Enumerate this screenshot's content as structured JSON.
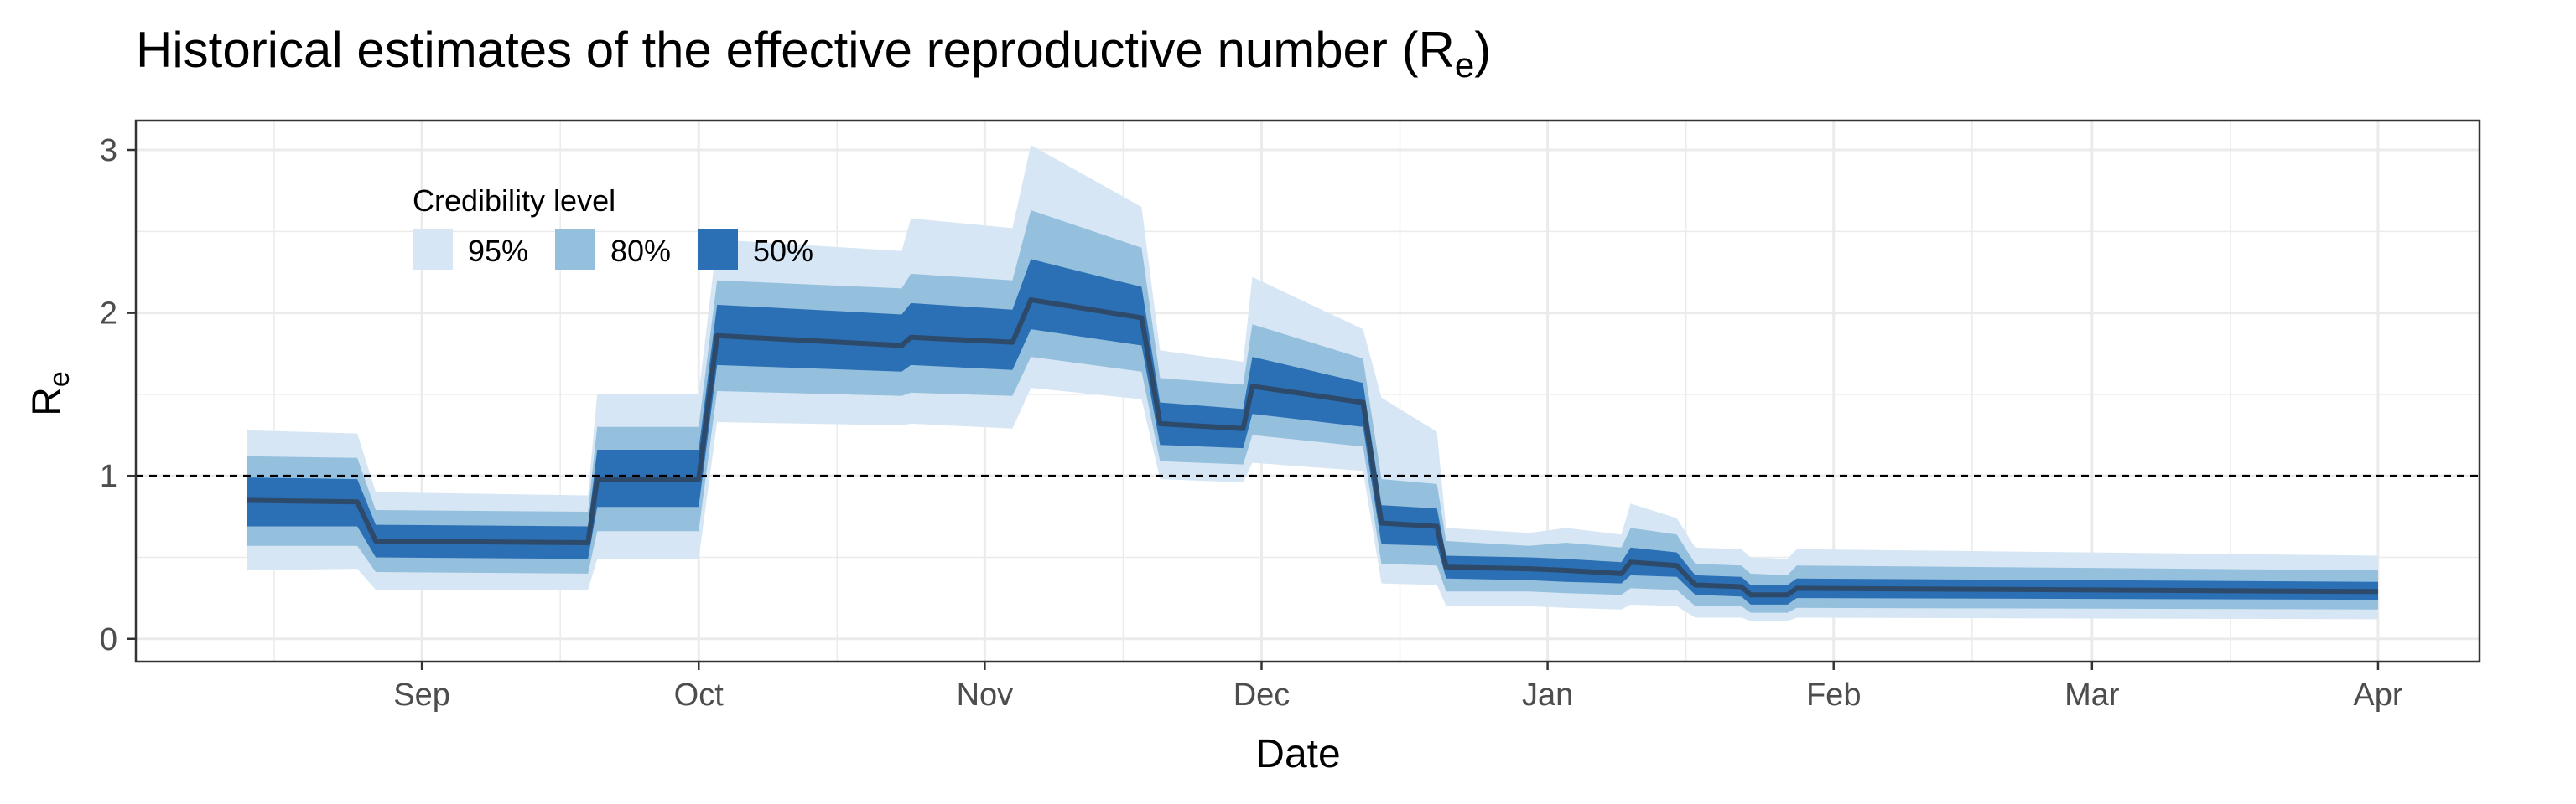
{
  "chart_data": {
    "type": "area",
    "title": "Historical estimates of the effective reproductive number (R",
    "title_subscript": "e",
    "title_suffix": ")",
    "xlabel": "Date",
    "ylabel": "R",
    "ylabel_subscript": "e",
    "ylim": [
      -0.14,
      3.18
    ],
    "y_ticks": [
      0,
      1,
      2,
      3
    ],
    "x_domain": [
      "2020-08-01",
      "2021-04-12"
    ],
    "x_ticks": [
      {
        "date": "2020-09-01",
        "label": "Sep"
      },
      {
        "date": "2020-10-01",
        "label": "Oct"
      },
      {
        "date": "2020-11-01",
        "label": "Nov"
      },
      {
        "date": "2020-12-01",
        "label": "Dec"
      },
      {
        "date": "2021-01-01",
        "label": "Jan"
      },
      {
        "date": "2021-02-01",
        "label": "Feb"
      },
      {
        "date": "2021-03-01",
        "label": "Mar"
      },
      {
        "date": "2021-04-01",
        "label": "Apr"
      }
    ],
    "reference_line": {
      "y": 1,
      "style": "dashed"
    },
    "grid": true,
    "legend": {
      "title": "Credibility level",
      "position": "top-left-inside",
      "entries": [
        {
          "label": "95%",
          "color": "#d6e6f4"
        },
        {
          "label": "80%",
          "color": "#94c0dd"
        },
        {
          "label": "50%",
          "color": "#2b6fb5"
        }
      ]
    },
    "colors": {
      "median": "#2e4a6b",
      "ci95": "#d6e6f4",
      "ci80": "#94c0dd",
      "ci50": "#2b6fb5",
      "grid": "#ebebeb",
      "border": "#333333"
    },
    "series": [
      {
        "x": "2020-08-13",
        "median": 0.85,
        "lo95": 0.42,
        "hi95": 1.28,
        "lo80": 0.57,
        "hi80": 1.12,
        "lo50": 0.69,
        "hi50": 0.99
      },
      {
        "x": "2020-08-25",
        "median": 0.84,
        "lo95": 0.43,
        "hi95": 1.26,
        "lo80": 0.57,
        "hi80": 1.11,
        "lo50": 0.69,
        "hi50": 0.98
      },
      {
        "x": "2020-08-27",
        "median": 0.6,
        "lo95": 0.3,
        "hi95": 0.9,
        "lo80": 0.41,
        "hi80": 0.79,
        "lo50": 0.5,
        "hi50": 0.7
      },
      {
        "x": "2020-09-19",
        "median": 0.59,
        "lo95": 0.3,
        "hi95": 0.88,
        "lo80": 0.4,
        "hi80": 0.78,
        "lo50": 0.49,
        "hi50": 0.69
      },
      {
        "x": "2020-09-20",
        "median": 0.98,
        "lo95": 0.49,
        "hi95": 1.5,
        "lo80": 0.66,
        "hi80": 1.3,
        "lo50": 0.81,
        "hi50": 1.16
      },
      {
        "x": "2020-10-01",
        "median": 0.98,
        "lo95": 0.49,
        "hi95": 1.5,
        "lo80": 0.66,
        "hi80": 1.3,
        "lo50": 0.81,
        "hi50": 1.16
      },
      {
        "x": "2020-10-03",
        "median": 1.86,
        "lo95": 1.33,
        "hi95": 2.45,
        "lo80": 1.52,
        "hi80": 2.2,
        "lo50": 1.68,
        "hi50": 2.05
      },
      {
        "x": "2020-10-23",
        "median": 1.8,
        "lo95": 1.31,
        "hi95": 2.38,
        "lo80": 1.49,
        "hi80": 2.15,
        "lo50": 1.64,
        "hi50": 1.99
      },
      {
        "x": "2020-10-24",
        "median": 1.85,
        "lo95": 1.32,
        "hi95": 2.58,
        "lo80": 1.51,
        "hi80": 2.24,
        "lo50": 1.68,
        "hi50": 2.06
      },
      {
        "x": "2020-11-04",
        "median": 1.82,
        "lo95": 1.29,
        "hi95": 2.52,
        "lo80": 1.49,
        "hi80": 2.2,
        "lo50": 1.65,
        "hi50": 2.02
      },
      {
        "x": "2020-11-06",
        "median": 2.08,
        "lo95": 1.54,
        "hi95": 3.03,
        "lo80": 1.73,
        "hi80": 2.63,
        "lo50": 1.9,
        "hi50": 2.33
      },
      {
        "x": "2020-11-18",
        "median": 1.97,
        "lo95": 1.47,
        "hi95": 2.65,
        "lo80": 1.64,
        "hi80": 2.4,
        "lo50": 1.8,
        "hi50": 2.16
      },
      {
        "x": "2020-11-20",
        "median": 1.32,
        "lo95": 0.98,
        "hi95": 1.77,
        "lo80": 1.09,
        "hi80": 1.6,
        "lo50": 1.19,
        "hi50": 1.45
      },
      {
        "x": "2020-11-29",
        "median": 1.29,
        "lo95": 0.96,
        "hi95": 1.7,
        "lo80": 1.07,
        "hi80": 1.56,
        "lo50": 1.17,
        "hi50": 1.41
      },
      {
        "x": "2020-11-30",
        "median": 1.55,
        "lo95": 1.08,
        "hi95": 2.22,
        "lo80": 1.25,
        "hi80": 1.93,
        "lo50": 1.38,
        "hi50": 1.73
      },
      {
        "x": "2020-12-12",
        "median": 1.45,
        "lo95": 1.03,
        "hi95": 1.9,
        "lo80": 1.18,
        "hi80": 1.72,
        "lo50": 1.3,
        "hi50": 1.57
      },
      {
        "x": "2020-12-14",
        "median": 0.71,
        "lo95": 0.34,
        "hi95": 1.48,
        "lo80": 0.46,
        "hi80": 0.98,
        "lo50": 0.58,
        "hi50": 0.82
      },
      {
        "x": "2020-12-20",
        "median": 0.69,
        "lo95": 0.33,
        "hi95": 1.27,
        "lo80": 0.45,
        "hi80": 0.95,
        "lo50": 0.57,
        "hi50": 0.8
      },
      {
        "x": "2020-12-21",
        "median": 0.44,
        "lo95": 0.2,
        "hi95": 0.68,
        "lo80": 0.29,
        "hi80": 0.6,
        "lo50": 0.37,
        "hi50": 0.51
      },
      {
        "x": "2020-12-30",
        "median": 0.43,
        "lo95": 0.2,
        "hi95": 0.65,
        "lo80": 0.29,
        "hi80": 0.57,
        "lo50": 0.36,
        "hi50": 0.5
      },
      {
        "x": "2021-01-03",
        "median": 0.42,
        "lo95": 0.19,
        "hi95": 0.68,
        "lo80": 0.28,
        "hi80": 0.59,
        "lo50": 0.35,
        "hi50": 0.49
      },
      {
        "x": "2021-01-09",
        "median": 0.4,
        "lo95": 0.18,
        "hi95": 0.64,
        "lo80": 0.27,
        "hi80": 0.56,
        "lo50": 0.34,
        "hi50": 0.47
      },
      {
        "x": "2021-01-10",
        "median": 0.47,
        "lo95": 0.21,
        "hi95": 0.83,
        "lo80": 0.31,
        "hi80": 0.68,
        "lo50": 0.39,
        "hi50": 0.56
      },
      {
        "x": "2021-01-15",
        "median": 0.45,
        "lo95": 0.2,
        "hi95": 0.74,
        "lo80": 0.3,
        "hi80": 0.64,
        "lo50": 0.38,
        "hi50": 0.53
      },
      {
        "x": "2021-01-17",
        "median": 0.33,
        "lo95": 0.13,
        "hi95": 0.56,
        "lo80": 0.2,
        "hi80": 0.46,
        "lo50": 0.27,
        "hi50": 0.39
      },
      {
        "x": "2021-01-22",
        "median": 0.32,
        "lo95": 0.13,
        "hi95": 0.55,
        "lo80": 0.2,
        "hi80": 0.45,
        "lo50": 0.26,
        "hi50": 0.38
      },
      {
        "x": "2021-01-23",
        "median": 0.27,
        "lo95": 0.11,
        "hi95": 0.5,
        "lo80": 0.16,
        "hi80": 0.4,
        "lo50": 0.21,
        "hi50": 0.33
      },
      {
        "x": "2021-01-27",
        "median": 0.27,
        "lo95": 0.11,
        "hi95": 0.49,
        "lo80": 0.16,
        "hi80": 0.39,
        "lo50": 0.21,
        "hi50": 0.33
      },
      {
        "x": "2021-01-28",
        "median": 0.31,
        "lo95": 0.13,
        "hi95": 0.55,
        "lo80": 0.19,
        "hi80": 0.45,
        "lo50": 0.25,
        "hi50": 0.37
      },
      {
        "x": "2021-04-01",
        "median": 0.29,
        "lo95": 0.12,
        "hi95": 0.51,
        "lo80": 0.18,
        "hi80": 0.42,
        "lo50": 0.24,
        "hi50": 0.35
      }
    ]
  }
}
